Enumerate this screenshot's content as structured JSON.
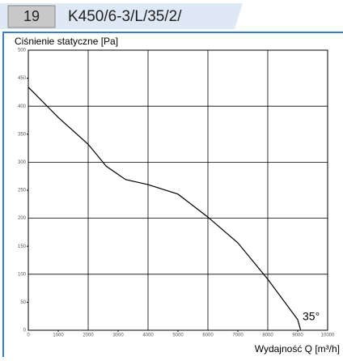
{
  "header": {
    "number": "19",
    "title": "K450/6-3/L/35/2/"
  },
  "chart_data": {
    "type": "line",
    "title": "Ciśnienie statyczne [Pa]",
    "x_label": "Wydajność Q [m³/h]",
    "annotation": "35°",
    "x": [
      0,
      1000,
      2000,
      2600,
      3250,
      4000,
      5000,
      6000,
      7000,
      8000,
      9000,
      9100
    ],
    "series": [
      {
        "name": "K450/6-3/L/35/2/",
        "color": "#000000",
        "values": [
          434,
          380,
          332,
          293,
          269,
          260,
          243,
          202,
          156,
          91,
          19,
          0
        ]
      }
    ],
    "xlim": [
      0,
      10000
    ],
    "xticks": [
      0,
      1000,
      2000,
      3000,
      4000,
      5000,
      6000,
      7000,
      8000,
      9000,
      10000
    ],
    "ylim": [
      0,
      500
    ],
    "yticks": [
      0,
      50,
      100,
      150,
      200,
      250,
      300,
      350,
      400,
      450,
      500
    ],
    "grid": true
  }
}
